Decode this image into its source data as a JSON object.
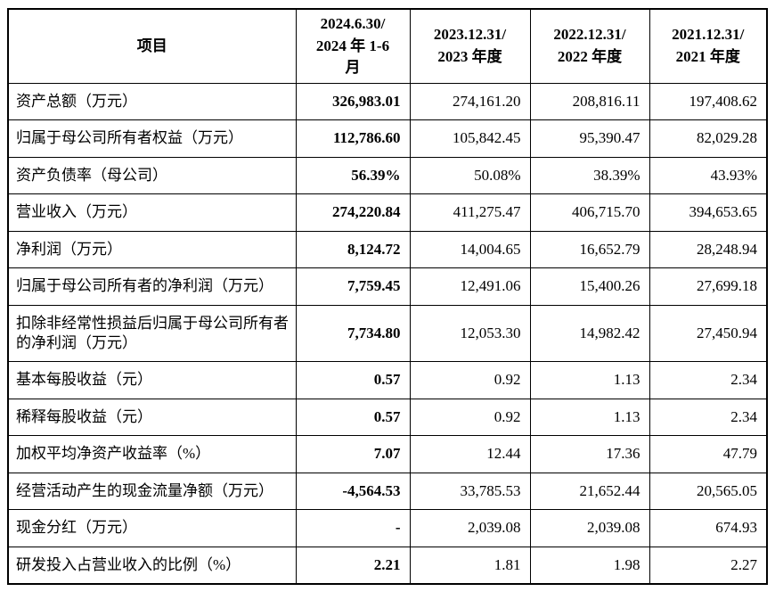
{
  "table": {
    "header": {
      "item_label": "项目",
      "period_columns": [
        "2024.6.30/\n2024 年 1-6\n月",
        "2023.12.31/\n2023 年度",
        "2022.12.31/\n2022 年度",
        "2021.12.31/\n2021 年度"
      ]
    },
    "rows": [
      {
        "label": "资产总额（万元）",
        "values": [
          "326,983.01",
          "274,161.20",
          "208,816.11",
          "197,408.62"
        ]
      },
      {
        "label": "归属于母公司所有者权益（万元）",
        "values": [
          "112,786.60",
          "105,842.45",
          "95,390.47",
          "82,029.28"
        ]
      },
      {
        "label": "资产负债率（母公司）",
        "values": [
          "56.39%",
          "50.08%",
          "38.39%",
          "43.93%"
        ]
      },
      {
        "label": "营业收入（万元）",
        "values": [
          "274,220.84",
          "411,275.47",
          "406,715.70",
          "394,653.65"
        ]
      },
      {
        "label": "净利润（万元）",
        "values": [
          "8,124.72",
          "14,004.65",
          "16,652.79",
          "28,248.94"
        ]
      },
      {
        "label": "归属于母公司所有者的净利润（万元）",
        "values": [
          "7,759.45",
          "12,491.06",
          "15,400.26",
          "27,699.18"
        ]
      },
      {
        "label": "扣除非经常性损益后归属于母公司所有者的净利润（万元）",
        "values": [
          "7,734.80",
          "12,053.30",
          "14,982.42",
          "27,450.94"
        ]
      },
      {
        "label": "基本每股收益（元）",
        "values": [
          "0.57",
          "0.92",
          "1.13",
          "2.34"
        ]
      },
      {
        "label": "稀释每股收益（元）",
        "values": [
          "0.57",
          "0.92",
          "1.13",
          "2.34"
        ]
      },
      {
        "label": "加权平均净资产收益率（%）",
        "values": [
          "7.07",
          "12.44",
          "17.36",
          "47.79"
        ]
      },
      {
        "label": "经营活动产生的现金流量净额（万元）",
        "values": [
          "-4,564.53",
          "33,785.53",
          "21,652.44",
          "20,565.05"
        ]
      },
      {
        "label": "现金分红（万元）",
        "values": [
          "-",
          "2,039.08",
          "2,039.08",
          "674.93"
        ]
      },
      {
        "label": "研发投入占营业收入的比例（%）",
        "values": [
          "2.21",
          "1.81",
          "1.98",
          "2.27"
        ]
      }
    ]
  }
}
